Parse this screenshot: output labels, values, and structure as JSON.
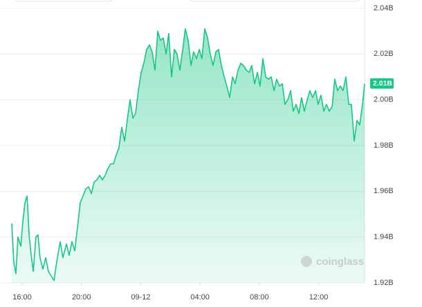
{
  "chart_data": {
    "type": "area",
    "x": [
      -0.7,
      -0.56,
      -0.42,
      -0.28,
      -0.09,
      0.05,
      0.19,
      0.33,
      0.47,
      0.61,
      0.75,
      0.93,
      1.07,
      1.21,
      1.4,
      1.59,
      1.77,
      1.96,
      2.15,
      2.33,
      2.57,
      2.75,
      2.99,
      3.17,
      3.36,
      3.55,
      3.73,
      3.92,
      4.11,
      4.29,
      4.48,
      4.67,
      4.85,
      5.04,
      5.23,
      5.41,
      5.6,
      5.79,
      5.97,
      6.16,
      6.35,
      6.53,
      6.72,
      6.91,
      7.09,
      7.28,
      7.47,
      7.65,
      7.84,
      8.03,
      8.21,
      8.4,
      8.59,
      8.77,
      8.96,
      9.15,
      9.33,
      9.52,
      9.71,
      9.89,
      10.08,
      10.27,
      10.45,
      10.64,
      10.83,
      11.01,
      11.2,
      11.39,
      11.57,
      11.76,
      11.95,
      12.13,
      12.32,
      12.51,
      12.69,
      12.88,
      13.07,
      13.25,
      13.44,
      13.63,
      13.81,
      14.0,
      14.19,
      14.37,
      14.56,
      14.75,
      14.93,
      15.12,
      15.31,
      15.49,
      15.68,
      15.87,
      16.05,
      16.24,
      16.43,
      16.61,
      16.8,
      16.99,
      17.17,
      17.36,
      17.55,
      17.73,
      17.92,
      18.11,
      18.29,
      18.48,
      18.67,
      18.85,
      19.04,
      19.23,
      19.41,
      19.6,
      19.79,
      19.97,
      20.16,
      20.35,
      20.53,
      20.72,
      20.91,
      21.09,
      21.28,
      21.47,
      21.65,
      21.84,
      22.03,
      22.21,
      22.4,
      22.59,
      22.77,
      22.96,
      23.1
    ],
    "series": [
      {
        "color": "#16c784",
        "values": [
          1.946,
          1.929,
          1.924,
          1.94,
          1.936,
          1.947,
          1.955,
          1.958,
          1.941,
          1.932,
          1.925,
          1.94,
          1.941,
          1.931,
          1.926,
          1.931,
          1.925,
          1.923,
          1.921,
          1.929,
          1.938,
          1.931,
          1.937,
          1.932,
          1.938,
          1.934,
          1.944,
          1.955,
          1.958,
          1.961,
          1.962,
          1.959,
          1.964,
          1.965,
          1.967,
          1.965,
          1.967,
          1.97,
          1.972,
          1.972,
          1.976,
          1.979,
          1.988,
          1.982,
          1.991,
          2.0,
          1.992,
          1.994,
          2.004,
          2.012,
          2.016,
          2.022,
          2.024,
          2.021,
          2.013,
          2.03,
          2.026,
          2.027,
          2.02,
          2.029,
          2.01,
          2.022,
          2.02,
          2.013,
          2.022,
          2.031,
          2.026,
          2.015,
          2.021,
          2.018,
          2.022,
          2.018,
          2.031,
          2.027,
          2.02,
          2.015,
          2.021,
          2.022,
          2.015,
          2.01,
          2.006,
          2.001,
          2.01,
          2.007,
          2.013,
          2.016,
          2.015,
          2.013,
          2.012,
          2.015,
          2.007,
          2.012,
          2.006,
          2.018,
          2.01,
          2.009,
          2.01,
          2.004,
          2.009,
          2.006,
          2.007,
          1.998,
          2.0,
          2.004,
          1.995,
          1.998,
          1.994,
          2.001,
          1.995,
          2.0,
          2.004,
          2.001,
          2.004,
          1.998,
          2.002,
          1.995,
          1.998,
          1.995,
          1.997,
          2.009,
          2.004,
          2.006,
          2.004,
          2.01,
          1.998,
          1.998,
          1.982,
          1.991,
          1.989,
          1.998,
          2.007
        ]
      }
    ],
    "xlim": [
      -0.7,
      23.1
    ],
    "xticks": [
      {
        "value": 0,
        "label": "16:00"
      },
      {
        "value": 4,
        "label": "20:00"
      },
      {
        "value": 8,
        "label": "09-12"
      },
      {
        "value": 12,
        "label": "04:00"
      },
      {
        "value": 16,
        "label": "08:00"
      },
      {
        "value": 20,
        "label": "12:00"
      }
    ],
    "ylim": [
      1.92,
      2.04
    ],
    "yticks": [
      {
        "value": 1.92,
        "label": "1.92B"
      },
      {
        "value": 1.94,
        "label": "1.94B"
      },
      {
        "value": 1.96,
        "label": "1.96B"
      },
      {
        "value": 1.98,
        "label": "1.98B"
      },
      {
        "value": 2.0,
        "label": "2.00B"
      },
      {
        "value": 2.02,
        "label": "2.02B"
      },
      {
        "value": 2.04,
        "label": "2.04B"
      }
    ],
    "current": {
      "value": 2.007,
      "label": "2.01B"
    },
    "watermark": "coinglass",
    "grid": true
  }
}
